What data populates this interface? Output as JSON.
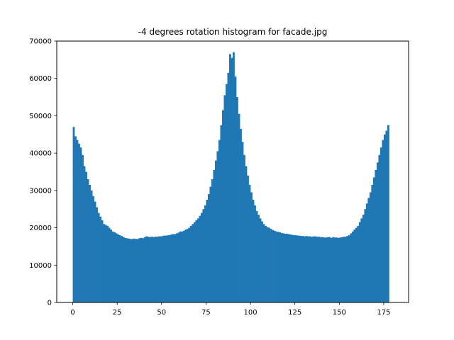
{
  "colors": {
    "bar": "#1f77b4",
    "axis": "#000000",
    "background": "#ffffff"
  },
  "chart_data": {
    "type": "bar",
    "title": "-4 degrees rotation histogram for facade.jpg",
    "xlabel": "",
    "ylabel": "",
    "xlim": [
      -9,
      189
    ],
    "ylim": [
      0,
      70000
    ],
    "xticks": [
      0,
      25,
      50,
      75,
      100,
      125,
      150,
      175
    ],
    "yticks": [
      0,
      10000,
      20000,
      30000,
      40000,
      50000,
      60000,
      70000
    ],
    "bin_start": 0,
    "bin_width": 1,
    "grid": false,
    "legend": "none",
    "values": [
      47000,
      44500,
      43500,
      42500,
      41500,
      39500,
      36500,
      35000,
      33000,
      31500,
      30000,
      28500,
      27000,
      25500,
      24000,
      23000,
      22000,
      21000,
      20800,
      20500,
      20000,
      19500,
      19000,
      18800,
      18500,
      18200,
      18000,
      17800,
      17500,
      17300,
      17200,
      17100,
      17000,
      17000,
      17100,
      17000,
      17000,
      17200,
      17300,
      17200,
      17500,
      17700,
      17600,
      17500,
      17600,
      17500,
      17600,
      17600,
      17700,
      17700,
      17800,
      17900,
      17900,
      18000,
      18000,
      18200,
      18300,
      18300,
      18500,
      18700,
      19000,
      19000,
      19200,
      19500,
      19700,
      20000,
      20500,
      21000,
      21500,
      22000,
      22500,
      23200,
      24000,
      25000,
      26000,
      27500,
      29000,
      31000,
      33000,
      35500,
      38000,
      40500,
      43500,
      47500,
      51500,
      55500,
      58500,
      61500,
      66500,
      65500,
      67000,
      60500,
      55000,
      50500,
      46500,
      43000,
      39500,
      36500,
      34000,
      31500,
      29500,
      27500,
      26000,
      24500,
      23500,
      22500,
      21700,
      21000,
      20500,
      20200,
      20000,
      19700,
      19400,
      19200,
      19000,
      18900,
      18800,
      18600,
      18500,
      18400,
      18400,
      18300,
      18200,
      18100,
      18000,
      18000,
      17900,
      17900,
      17800,
      17800,
      17700,
      17800,
      17700,
      17700,
      17600,
      17700,
      17700,
      17600,
      17600,
      17500,
      17500,
      17400,
      17400,
      17500,
      17500,
      17300,
      17500,
      17400,
      17400,
      17300,
      17400,
      17500,
      17600,
      17600,
      17800,
      18000,
      18500,
      19000,
      19500,
      20000,
      20500,
      21500,
      22500,
      23500,
      25000,
      26500,
      28000,
      29500,
      31500,
      33500,
      35500,
      37500,
      39500,
      41500,
      43500,
      45000,
      46000,
      47500
    ]
  }
}
